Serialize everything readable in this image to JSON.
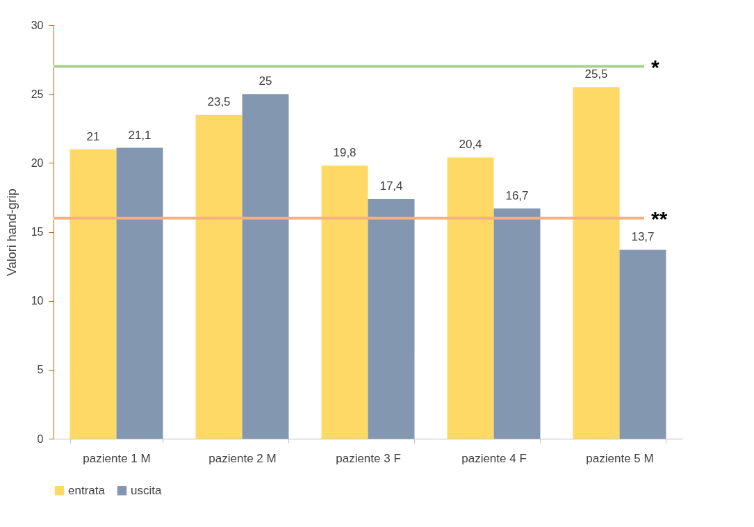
{
  "chart_data": {
    "type": "bar",
    "ylabel": "Valori hand-grip",
    "categories": [
      "paziente 1 M",
      "paziente 2 M",
      "paziente 3 F",
      "paziente 4 F",
      "paziente 5 M"
    ],
    "series": [
      {
        "name": "entrata",
        "color": "#ffd966",
        "values": [
          21,
          23.5,
          19.8,
          20.4,
          25.5
        ],
        "value_labels": [
          "21",
          "23,5",
          "19,8",
          "20,4",
          "25,5"
        ]
      },
      {
        "name": "uscita",
        "color": "#8497b0",
        "values": [
          21.1,
          25,
          17.4,
          16.7,
          13.7
        ],
        "value_labels": [
          "21,1",
          "25",
          "17,4",
          "16,7",
          "13,7"
        ]
      }
    ],
    "ylim": [
      0,
      30
    ],
    "yticks": [
      0,
      5,
      10,
      15,
      20,
      25,
      30
    ],
    "grid": false,
    "legend": "bottom",
    "ref_lines": [
      {
        "axis": "y",
        "value": 27,
        "label": "*",
        "color": "#a9d18e"
      },
      {
        "axis": "y",
        "value": 16,
        "label": "**",
        "color": "#f4b183"
      }
    ]
  }
}
